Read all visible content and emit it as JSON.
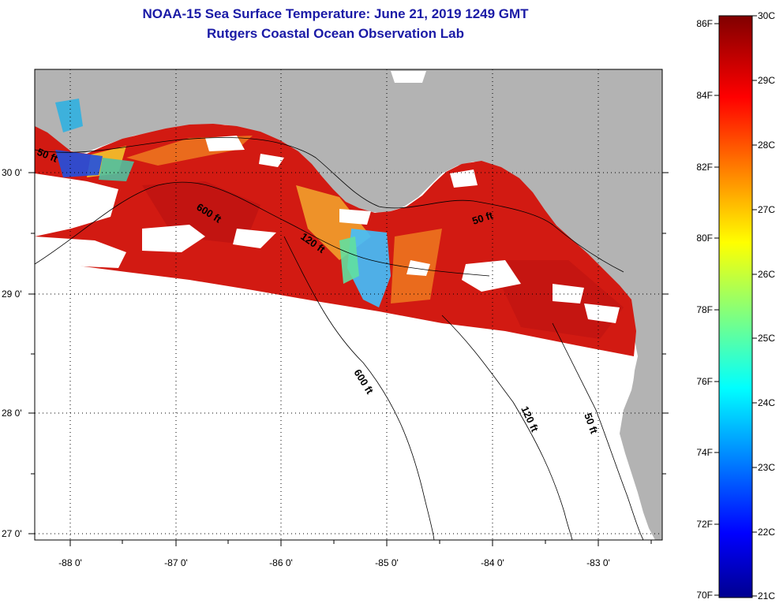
{
  "header": {
    "title_line1": "NOAA-15 Sea Surface Temperature:  June 21, 2019 1249 GMT",
    "title_line2": "Rutgers Coastal Ocean Observation Lab"
  },
  "map": {
    "lat_labels": [
      "30 0'",
      "29 0'",
      "28 0'",
      "27 0'"
    ],
    "lon_labels": [
      "-88 0'",
      "-87 0'",
      "-86 0'",
      "-85 0'",
      "-84 0'",
      "-83 0'"
    ],
    "contour_labels": {
      "c50_west": "50 ft",
      "c600_north": "600 ft",
      "c120_north": "120 ft",
      "c50_east": "50 ft",
      "c600_south": "600 ft",
      "c120_south": "120 ft",
      "c50_south": "50 ft"
    },
    "colors": {
      "land": "#b3b3b3",
      "no_data": "#ffffff",
      "warm_water": "#d21a12"
    }
  },
  "colorbar": {
    "fahrenheit_labels": [
      "86F",
      "84F",
      "82F",
      "80F",
      "78F",
      "76F",
      "74F",
      "72F",
      "70F"
    ],
    "celsius_labels": [
      "30C",
      "29C",
      "28C",
      "27C",
      "26C",
      "25C",
      "24C",
      "23C",
      "22C",
      "21C"
    ]
  }
}
